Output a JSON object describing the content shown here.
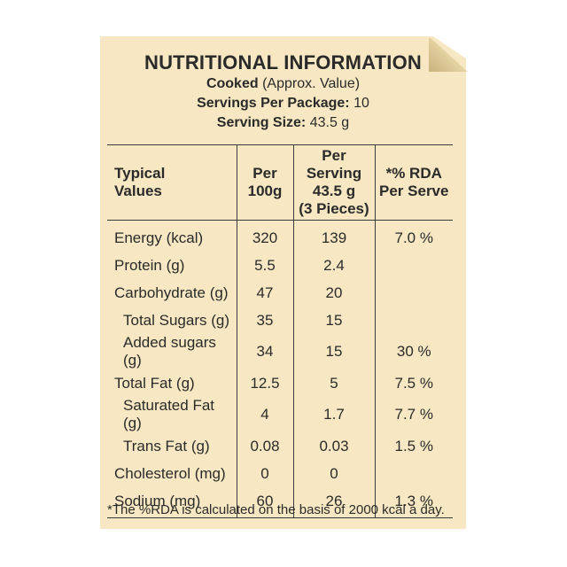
{
  "header": {
    "title": "NUTRITIONAL INFORMATION",
    "cooked_label": "Cooked",
    "cooked_note": "(Approx. Value)",
    "servings_label": "Servings Per Package:",
    "servings_value": "10",
    "size_label": "Serving Size:",
    "size_value": "43.5 g"
  },
  "table": {
    "columns": [
      {
        "line1": "Typical",
        "line2": "Values",
        "line3": ""
      },
      {
        "line1": "Per",
        "line2": "100g",
        "line3": ""
      },
      {
        "line1": "Per Serving",
        "line2": "43.5 g",
        "line3": "(3 Pieces)"
      },
      {
        "line1": "*% RDA",
        "line2": "Per Serve",
        "line3": ""
      }
    ],
    "rows": [
      {
        "name": "Energy (kcal)",
        "per100": "320",
        "serving": "139",
        "rda": "7.0 %"
      },
      {
        "name": "Protein (g)",
        "per100": "5.5",
        "serving": "2.4",
        "rda": ""
      },
      {
        "name": "Carbohydrate (g)",
        "per100": "47",
        "serving": "20",
        "rda": ""
      },
      {
        "name": "Total Sugars (g)",
        "per100": "35",
        "serving": "15",
        "rda": ""
      },
      {
        "name": "Added sugars (g)",
        "per100": "34",
        "serving": "15",
        "rda": "30 %"
      },
      {
        "name": "Total Fat (g)",
        "per100": "12.5",
        "serving": "5",
        "rda": "7.5 %"
      },
      {
        "name": "Saturated Fat (g)",
        "per100": "4",
        "serving": "1.7",
        "rda": "7.7 %"
      },
      {
        "name": "Trans Fat (g)",
        "per100": "0.08",
        "serving": "0.03",
        "rda": "1.5 %"
      },
      {
        "name": "Cholesterol (mg)",
        "per100": "0",
        "serving": "0",
        "rda": ""
      },
      {
        "name": "Sodium (mg)",
        "per100": "60",
        "serving": "26",
        "rda": "1.3 %"
      }
    ]
  },
  "footnote": "*The %RDA is calculated on the basis of 2000 kcal a day."
}
